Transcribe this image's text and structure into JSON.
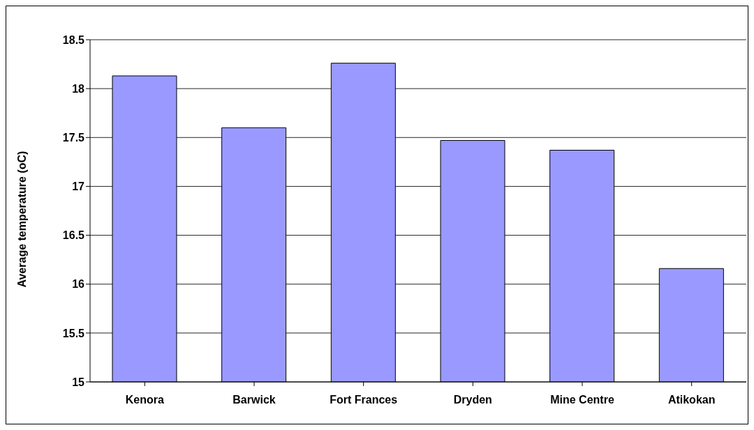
{
  "chart_data": {
    "type": "bar",
    "ylabel": "Average temperature (oC)",
    "categories": [
      "Kenora",
      "Barwick",
      "Fort Frances",
      "Dryden",
      "Mine Centre",
      "Atikokan"
    ],
    "values": [
      18.13,
      17.6,
      18.26,
      17.47,
      17.37,
      16.16
    ],
    "color": "#9999ff",
    "ylim": [
      15,
      18.5
    ],
    "yticks": [
      15,
      15.5,
      16,
      16.5,
      17,
      17.5,
      18,
      18.5
    ],
    "grid": "y"
  }
}
